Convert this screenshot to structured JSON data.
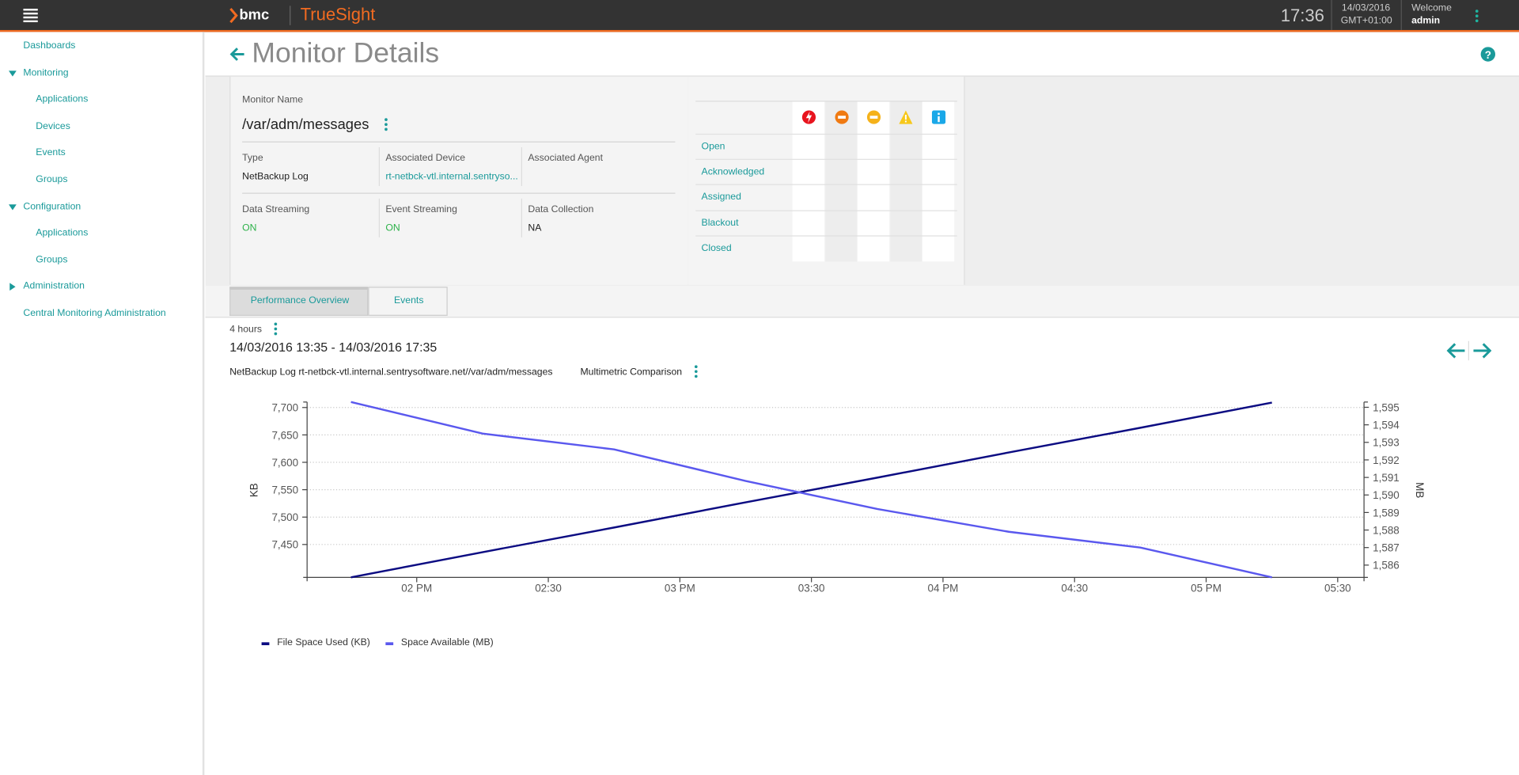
{
  "header": {
    "brand": "bmc",
    "product": "TrueSight",
    "time": "17:36",
    "date": "14/03/2016",
    "timezone": "GMT+01:00",
    "welcome": "Welcome",
    "user": "admin"
  },
  "sidebar": {
    "items": [
      {
        "label": "Dashboards"
      },
      {
        "label": "Monitoring",
        "expanded": true,
        "children": [
          "Applications",
          "Devices",
          "Events",
          "Groups"
        ]
      },
      {
        "label": "Configuration",
        "expanded": true,
        "children": [
          "Applications",
          "Groups"
        ]
      },
      {
        "label": "Administration",
        "expanded": false
      },
      {
        "label": "Central Monitoring Administration"
      }
    ]
  },
  "page": {
    "title": "Monitor Details"
  },
  "monitor": {
    "name_label": "Monitor Name",
    "name": "/var/adm/messages",
    "fields": [
      {
        "label": "Type",
        "value": "NetBackup Log"
      },
      {
        "label": "Associated Device",
        "value": "rt-netbck-vtl.internal.sentryso...",
        "link": true
      },
      {
        "label": "Associated Agent"
      },
      {
        "label": "Data Streaming",
        "value": "ON",
        "status": "on"
      },
      {
        "label": "Event Streaming",
        "value": "ON",
        "status": "on"
      },
      {
        "label": "Data Collection",
        "value": "NA"
      }
    ]
  },
  "events": {
    "rows": [
      "Open",
      "Acknowledged",
      "Assigned",
      "Blackout",
      "Closed"
    ]
  },
  "tabs": {
    "items": [
      "Performance Overview",
      "Events"
    ],
    "active": 0
  },
  "range": {
    "duration": "4 hours",
    "period": "14/03/2016 13:35 - 14/03/2016 17:35"
  },
  "chart_data": {
    "type": "line",
    "subtitle": "NetBackup Log rt-netbck-vtl.internal.sentrysoftware.net//var/adm/messages",
    "comparison": "Multimetric Comparison",
    "ylabel": "KB",
    "y2label": "MB",
    "x": [
      825,
      855,
      885,
      915,
      945,
      975,
      1005,
      1035
    ],
    "xlim": [
      815,
      1056
    ],
    "xticks": [
      {
        "value": 840,
        "label": "02 PM"
      },
      {
        "value": 870,
        "label": "02:30"
      },
      {
        "value": 900,
        "label": "03 PM"
      },
      {
        "value": 930,
        "label": "03:30"
      },
      {
        "value": 960,
        "label": "04 PM"
      },
      {
        "value": 990,
        "label": "04:30"
      },
      {
        "value": 1020,
        "label": "05 PM"
      },
      {
        "value": 1050,
        "label": "05:30"
      }
    ],
    "ylim": [
      7390,
      7710
    ],
    "yticks": [
      {
        "value": 7450,
        "label": "7,450"
      },
      {
        "value": 7500,
        "label": "7,500"
      },
      {
        "value": 7550,
        "label": "7,550"
      },
      {
        "value": 7600,
        "label": "7,600"
      },
      {
        "value": 7650,
        "label": "7,650"
      },
      {
        "value": 7700,
        "label": "7,700"
      }
    ],
    "y2lim": [
      1585.3,
      1595.3
    ],
    "y2ticks": [
      {
        "value": 1586,
        "label": "1,586"
      },
      {
        "value": 1587,
        "label": "1,587"
      },
      {
        "value": 1588,
        "label": "1,588"
      },
      {
        "value": 1589,
        "label": "1,589"
      },
      {
        "value": 1590,
        "label": "1,590"
      },
      {
        "value": 1591,
        "label": "1,591"
      },
      {
        "value": 1592,
        "label": "1,592"
      },
      {
        "value": 1593,
        "label": "1,593"
      },
      {
        "value": 1594,
        "label": "1,594"
      },
      {
        "value": 1595,
        "label": "1,595"
      }
    ],
    "grid": true,
    "series": [
      {
        "name": "File Space Used (KB)",
        "color": "#0c0c82",
        "values": [
          7390,
          7436,
          7481,
          7527,
          7572,
          7618,
          7663,
          7709
        ]
      },
      {
        "name": "Space Available (MB)",
        "color": "#5a58ee",
        "axis": "y2",
        "values": [
          1595.3,
          1593.5,
          1592.6,
          1590.8,
          1589.2,
          1587.9,
          1587.0,
          1585.3
        ]
      }
    ]
  }
}
